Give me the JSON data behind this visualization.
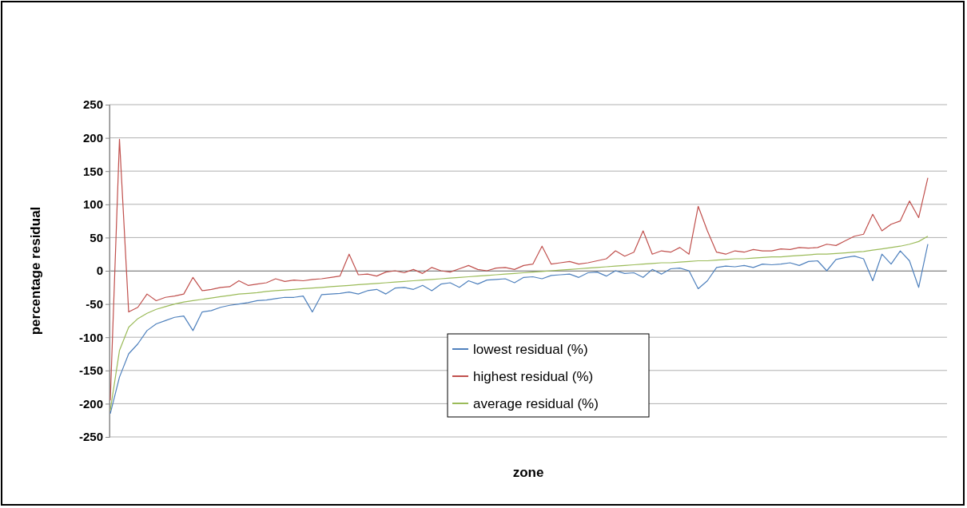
{
  "chart_data": {
    "type": "line",
    "xlabel": "zone",
    "ylabel": "percentage residual",
    "categories": [
      null,
      null,
      null,
      null,
      null,
      null,
      null,
      null,
      null,
      null,
      null,
      null,
      null,
      null,
      null,
      null,
      null,
      null,
      null,
      null,
      null,
      null,
      null,
      null,
      null,
      null,
      null,
      null,
      null,
      null,
      null,
      null,
      null,
      null,
      null,
      null,
      null,
      null,
      null,
      null,
      null,
      null,
      null,
      null,
      null,
      null,
      null,
      null,
      null,
      null,
      null,
      null,
      null,
      null,
      null,
      null,
      null,
      null,
      null,
      null,
      null,
      null,
      null,
      null,
      null,
      null,
      null,
      null,
      null,
      null,
      null,
      null,
      null,
      null,
      null,
      null,
      null,
      null,
      null,
      null,
      null,
      null,
      null,
      null,
      null,
      null,
      null,
      null,
      null,
      null,
      null,
      null
    ],
    "series": [
      {
        "name": "lowest residual (%)",
        "color": "#4f81bd",
        "values": [
          -215,
          -160,
          -125,
          -110,
          -90,
          -80,
          -75,
          -70,
          -68,
          -90,
          -62,
          -60,
          -55,
          -52,
          -50,
          -48,
          -45,
          -44,
          -42,
          -40,
          -40,
          -38,
          -62,
          -36,
          -35,
          -34,
          -32,
          -35,
          -30,
          -28,
          -35,
          -26,
          -25,
          -28,
          -22,
          -30,
          -20,
          -18,
          -25,
          -15,
          -20,
          -14,
          -13,
          -12,
          -18,
          -10,
          -9,
          -12,
          -7,
          -6,
          -5,
          -10,
          -3,
          -2,
          -8,
          0,
          -4,
          -3,
          -10,
          2,
          -5,
          3,
          4,
          0,
          -27,
          -15,
          5,
          7,
          6,
          8,
          5,
          10,
          9,
          10,
          12,
          8,
          14,
          15,
          0,
          17,
          20,
          22,
          18,
          -15,
          25,
          10,
          30,
          15,
          -25,
          40,
          null,
          null
        ]
      },
      {
        "name": "highest residual (%)",
        "color": "#c0504d",
        "values": [
          -195,
          198,
          -62,
          -55,
          -35,
          -45,
          -40,
          -38,
          -35,
          -10,
          -30,
          -28,
          -25,
          -24,
          -15,
          -22,
          -20,
          -18,
          -12,
          -16,
          -14,
          -15,
          -13,
          -12,
          -10,
          -8,
          25,
          -6,
          -5,
          -8,
          -2,
          0,
          -3,
          2,
          -4,
          5,
          0,
          -2,
          3,
          8,
          2,
          0,
          4,
          5,
          2,
          8,
          10,
          37,
          10,
          12,
          14,
          10,
          12,
          15,
          18,
          30,
          22,
          28,
          60,
          25,
          30,
          28,
          35,
          25,
          97,
          60,
          28,
          25,
          30,
          28,
          32,
          30,
          30,
          33,
          32,
          35,
          34,
          35,
          40,
          38,
          45,
          52,
          55,
          85,
          60,
          70,
          75,
          105,
          80,
          140,
          null,
          null
        ]
      },
      {
        "name": "average residual (%)",
        "color": "#9bbb59",
        "values": [
          -210,
          -120,
          -85,
          -72,
          -64,
          -58,
          -54,
          -50,
          -47,
          -45,
          -43,
          -41,
          -39,
          -37,
          -35,
          -34,
          -33,
          -31,
          -30,
          -29,
          -28,
          -27,
          -26,
          -25,
          -24,
          -23,
          -22,
          -21,
          -20,
          -19,
          -18,
          -17,
          -16,
          -15,
          -14,
          -13,
          -12,
          -11,
          -10,
          -9,
          -8,
          -7,
          -6,
          -5,
          -4,
          -3,
          -2,
          -1,
          0,
          1,
          2,
          3,
          4,
          5,
          6,
          7,
          8,
          9,
          10,
          11,
          12,
          12,
          13,
          14,
          15,
          15,
          16,
          17,
          18,
          18,
          19,
          20,
          21,
          21,
          22,
          23,
          24,
          25,
          25,
          26,
          27,
          28,
          29,
          31,
          33,
          35,
          37,
          40,
          44,
          52,
          null,
          null
        ]
      }
    ],
    "ylim": [
      -250,
      250
    ],
    "yticks": [
      -250,
      -200,
      -150,
      -100,
      -50,
      0,
      50,
      100,
      150,
      200,
      250
    ],
    "grid": "y",
    "legend": "bottom",
    "marker": "none",
    "line_style": "solid"
  }
}
